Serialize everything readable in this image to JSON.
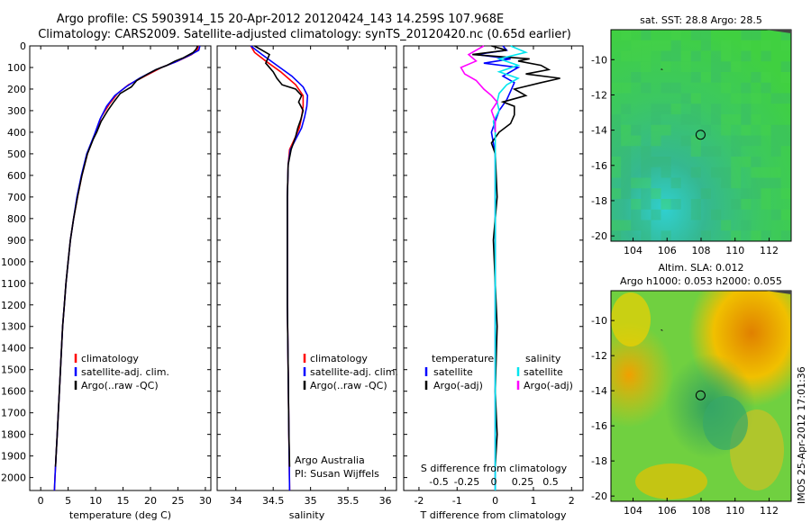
{
  "header": {
    "line1": "Argo profile: CS 5903914_15 20-Apr-2012 20120424_143 14.259S 107.968E",
    "line2": "Climatology: CARS2009. Satellite-adjusted climatology: synTS_20120420.nc (0.65d earlier)"
  },
  "colors": {
    "climatology": "#ff0000",
    "satellite": "#0000ff",
    "argo": "#000000",
    "satellite_s": "#00e5ee",
    "argo_s": "#ff00ff"
  },
  "side_text": "IMOS 25-Apr-2012 17:01:36",
  "chart_data": [
    {
      "id": "temperature",
      "type": "line",
      "xlabel": "temperature (deg C)",
      "ylabel": "",
      "xlim": [
        -2,
        31
      ],
      "ylim": [
        2060,
        0
      ],
      "xticks": [
        0,
        5,
        10,
        15,
        20,
        25,
        30
      ],
      "yticks": [
        0,
        100,
        200,
        300,
        400,
        500,
        600,
        700,
        800,
        900,
        1000,
        1100,
        1200,
        1300,
        1400,
        1500,
        1600,
        1700,
        1800,
        1900,
        2000
      ],
      "legend": [
        "climatology",
        "satellite-adj. clim.",
        "Argo(..raw -QC)"
      ],
      "series": [
        {
          "name": "climatology",
          "color": "#ff0000",
          "points": [
            [
              28.7,
              0
            ],
            [
              28.5,
              20
            ],
            [
              27.5,
              40
            ],
            [
              25,
              70
            ],
            [
              22,
              100
            ],
            [
              19,
              140
            ],
            [
              16,
              180
            ],
            [
              14,
              220
            ],
            [
              12.5,
              270
            ],
            [
              11,
              330
            ],
            [
              10,
              400
            ],
            [
              8.5,
              500
            ],
            [
              7.5,
              600
            ],
            [
              6.7,
              700
            ],
            [
              6,
              800
            ],
            [
              5.4,
              900
            ],
            [
              5,
              1000
            ],
            [
              4.6,
              1100
            ],
            [
              4.3,
              1200
            ],
            [
              4,
              1300
            ],
            [
              3.8,
              1400
            ],
            [
              3.6,
              1500
            ],
            [
              3.4,
              1600
            ],
            [
              3.2,
              1700
            ],
            [
              3,
              1800
            ],
            [
              2.8,
              1900
            ],
            [
              2.6,
              2000
            ],
            [
              2.5,
              2060
            ]
          ]
        },
        {
          "name": "satellite-adj. clim.",
          "color": "#0000ff",
          "points": [
            [
              29,
              0
            ],
            [
              28.8,
              20
            ],
            [
              27,
              45
            ],
            [
              24.5,
              75
            ],
            [
              21,
              110
            ],
            [
              18,
              150
            ],
            [
              15.5,
              190
            ],
            [
              13.5,
              230
            ],
            [
              12,
              280
            ],
            [
              10.8,
              340
            ],
            [
              9.8,
              410
            ],
            [
              8.4,
              500
            ],
            [
              7.4,
              600
            ],
            [
              6.6,
              700
            ],
            [
              6,
              800
            ],
            [
              5.4,
              900
            ],
            [
              5,
              1000
            ],
            [
              4.6,
              1100
            ],
            [
              4.3,
              1200
            ],
            [
              4,
              1300
            ],
            [
              3.8,
              1400
            ],
            [
              3.6,
              1500
            ],
            [
              3.4,
              1600
            ],
            [
              3.2,
              1700
            ],
            [
              3,
              1800
            ],
            [
              2.8,
              1900
            ],
            [
              2.6,
              2000
            ],
            [
              2.5,
              2060
            ]
          ]
        },
        {
          "name": "Argo(..raw -QC)",
          "color": "#000000",
          "points": [
            [
              28.6,
              0
            ],
            [
              28.3,
              15
            ],
            [
              27.8,
              30
            ],
            [
              26,
              55
            ],
            [
              24.5,
              70
            ],
            [
              23,
              90
            ],
            [
              21,
              110
            ],
            [
              19.5,
              130
            ],
            [
              17.5,
              160
            ],
            [
              16.5,
              190
            ],
            [
              14.5,
              220
            ],
            [
              13.3,
              260
            ],
            [
              12.2,
              300
            ],
            [
              11,
              350
            ],
            [
              10.2,
              400
            ],
            [
              9.6,
              430
            ],
            [
              8.5,
              500
            ],
            [
              7.5,
              600
            ],
            [
              6.7,
              700
            ],
            [
              6,
              800
            ],
            [
              5.4,
              900
            ],
            [
              5,
              1000
            ],
            [
              4.6,
              1100
            ],
            [
              4.3,
              1200
            ],
            [
              4,
              1300
            ],
            [
              3.8,
              1400
            ],
            [
              3.6,
              1500
            ],
            [
              3.4,
              1600
            ],
            [
              3.2,
              1700
            ],
            [
              3,
              1800
            ],
            [
              2.8,
              1900
            ],
            [
              2.7,
              1950
            ]
          ]
        }
      ]
    },
    {
      "id": "salinity",
      "type": "line",
      "xlabel": "salinity",
      "ylabel": "",
      "xlim": [
        33.75,
        36.15
      ],
      "ylim": [
        2060,
        0
      ],
      "xticks": [
        34,
        34.5,
        35,
        35.5,
        36
      ],
      "legend": [
        "climatology",
        "satellite-adj. clim.",
        "Argo(..raw -QC)"
      ],
      "annotations": [
        "Argo Australia",
        "PI: Susan Wijffels"
      ],
      "series": [
        {
          "name": "climatology",
          "color": "#ff0000",
          "points": [
            [
              34.2,
              0
            ],
            [
              34.25,
              30
            ],
            [
              34.4,
              70
            ],
            [
              34.6,
              120
            ],
            [
              34.8,
              180
            ],
            [
              34.9,
              230
            ],
            [
              34.9,
              280
            ],
            [
              34.88,
              330
            ],
            [
              34.85,
              380
            ],
            [
              34.8,
              420
            ],
            [
              34.72,
              480
            ],
            [
              34.7,
              550
            ],
            [
              34.69,
              700
            ],
            [
              34.69,
              900
            ],
            [
              34.69,
              1200
            ],
            [
              34.7,
              1500
            ],
            [
              34.71,
              1800
            ],
            [
              34.72,
              2060
            ]
          ]
        },
        {
          "name": "satellite-adj. clim.",
          "color": "#0000ff",
          "points": [
            [
              34.2,
              0
            ],
            [
              34.35,
              40
            ],
            [
              34.55,
              90
            ],
            [
              34.75,
              140
            ],
            [
              34.9,
              190
            ],
            [
              34.96,
              230
            ],
            [
              34.95,
              280
            ],
            [
              34.92,
              330
            ],
            [
              34.88,
              380
            ],
            [
              34.82,
              420
            ],
            [
              34.73,
              480
            ],
            [
              34.7,
              550
            ],
            [
              34.69,
              700
            ],
            [
              34.69,
              900
            ],
            [
              34.69,
              1200
            ],
            [
              34.7,
              1500
            ],
            [
              34.71,
              1800
            ],
            [
              34.72,
              2060
            ]
          ]
        },
        {
          "name": "Argo(..raw -QC)",
          "color": "#000000",
          "points": [
            [
              34.25,
              0
            ],
            [
              34.45,
              40
            ],
            [
              34.4,
              80
            ],
            [
              34.5,
              120
            ],
            [
              34.55,
              150
            ],
            [
              34.62,
              180
            ],
            [
              34.8,
              200
            ],
            [
              34.88,
              230
            ],
            [
              34.84,
              260
            ],
            [
              34.9,
              300
            ],
            [
              34.87,
              340
            ],
            [
              34.83,
              380
            ],
            [
              34.8,
              420
            ],
            [
              34.74,
              480
            ],
            [
              34.7,
              550
            ],
            [
              34.69,
              700
            ],
            [
              34.69,
              900
            ],
            [
              34.69,
              1200
            ],
            [
              34.7,
              1500
            ],
            [
              34.71,
              1800
            ],
            [
              34.72,
              1950
            ]
          ]
        }
      ]
    },
    {
      "id": "difference",
      "type": "line",
      "xlabel": "T difference from climatology",
      "xlabel_top": "S difference from climatology",
      "xlim": [
        -2.4,
        2.3
      ],
      "ylim": [
        2060,
        0
      ],
      "xticks": [
        -2,
        -1,
        0,
        1,
        2
      ],
      "top_ticks": [
        "-0.5",
        "-0.25",
        "0",
        "0.25",
        "0.5"
      ],
      "legend_left": [
        "temperature",
        "satellite",
        "Argo(-adj)"
      ],
      "legend_right": [
        "salinity",
        "satellite",
        "Argo(-adj)"
      ],
      "series": [
        {
          "name": "T satellite",
          "color": "#0000ff",
          "points": [
            [
              0.2,
              0
            ],
            [
              0.3,
              20
            ],
            [
              -0.5,
              40
            ],
            [
              0.4,
              60
            ],
            [
              -0.3,
              80
            ],
            [
              0.6,
              100
            ],
            [
              0.2,
              140
            ],
            [
              0.5,
              170
            ],
            [
              0.4,
              210
            ],
            [
              0.3,
              250
            ],
            [
              0.1,
              300
            ],
            [
              0,
              350
            ],
            [
              -0.1,
              400
            ],
            [
              -0.05,
              450
            ],
            [
              0,
              500
            ],
            [
              0,
              800
            ],
            [
              0,
              1200
            ],
            [
              0,
              1600
            ],
            [
              0,
              2060
            ]
          ]
        },
        {
          "name": "T Argo(-adj)",
          "color": "#000000",
          "points": [
            [
              -0.1,
              0
            ],
            [
              0.3,
              20
            ],
            [
              -0.6,
              40
            ],
            [
              0.9,
              60
            ],
            [
              0.6,
              70
            ],
            [
              1.2,
              90
            ],
            [
              1.4,
              110
            ],
            [
              0.8,
              130
            ],
            [
              1.7,
              150
            ],
            [
              1.2,
              170
            ],
            [
              0.5,
              200
            ],
            [
              0.8,
              230
            ],
            [
              0.2,
              260
            ],
            [
              0.5,
              280
            ],
            [
              0.5,
              320
            ],
            [
              0.4,
              360
            ],
            [
              0.1,
              400
            ],
            [
              -0.1,
              450
            ],
            [
              0,
              500
            ],
            [
              0.05,
              700
            ],
            [
              -0.05,
              900
            ],
            [
              0,
              1100
            ],
            [
              0.05,
              1300
            ],
            [
              0,
              1600
            ],
            [
              0.05,
              1800
            ],
            [
              0,
              1950
            ]
          ]
        },
        {
          "name": "S satellite",
          "color": "#00e5ee",
          "points": [
            [
              0.4,
              0
            ],
            [
              0.8,
              30
            ],
            [
              0.1,
              60
            ],
            [
              0.6,
              90
            ],
            [
              0.1,
              120
            ],
            [
              0.6,
              150
            ],
            [
              0.3,
              180
            ],
            [
              0.1,
              220
            ],
            [
              0.05,
              260
            ],
            [
              0.1,
              300
            ],
            [
              -0.05,
              350
            ],
            [
              0,
              400
            ],
            [
              0,
              500
            ],
            [
              0,
              800
            ],
            [
              0,
              1200
            ],
            [
              0,
              1600
            ],
            [
              0,
              2060
            ]
          ]
        },
        {
          "name": "S Argo(-adj)",
          "color": "#ff00ff",
          "points": [
            [
              -0.3,
              0
            ],
            [
              -0.7,
              40
            ],
            [
              -0.5,
              70
            ],
            [
              -0.9,
              100
            ],
            [
              -0.8,
              130
            ],
            [
              -0.5,
              160
            ],
            [
              -0.3,
              200
            ],
            [
              -0.1,
              230
            ],
            [
              0.05,
              260
            ],
            [
              -0.1,
              300
            ],
            [
              0,
              350
            ],
            [
              0,
              400
            ]
          ]
        }
      ]
    }
  ],
  "maps": [
    {
      "id": "sst_map",
      "title": "sat. SST: 28.8 Argo: 28.5",
      "xticks": [
        104,
        106,
        108,
        110,
        112
      ],
      "yticks": [
        -10,
        -12,
        -14,
        -16,
        -18,
        -20
      ],
      "xlim": [
        102.7,
        113.3
      ],
      "ylim": [
        -20.3,
        -8.3
      ],
      "marker": [
        107.97,
        -14.26
      ]
    },
    {
      "id": "sla_map",
      "title_line1": "Altim. SLA: 0.012",
      "title_line2": "Argo h1000: 0.053 h2000: 0.055",
      "xticks": [
        104,
        106,
        108,
        110,
        112
      ],
      "yticks": [
        -10,
        -12,
        -14,
        -16,
        -18,
        -20
      ],
      "xlim": [
        102.7,
        113.3
      ],
      "ylim": [
        -20.3,
        -8.3
      ],
      "marker": [
        107.97,
        -14.26
      ]
    }
  ]
}
